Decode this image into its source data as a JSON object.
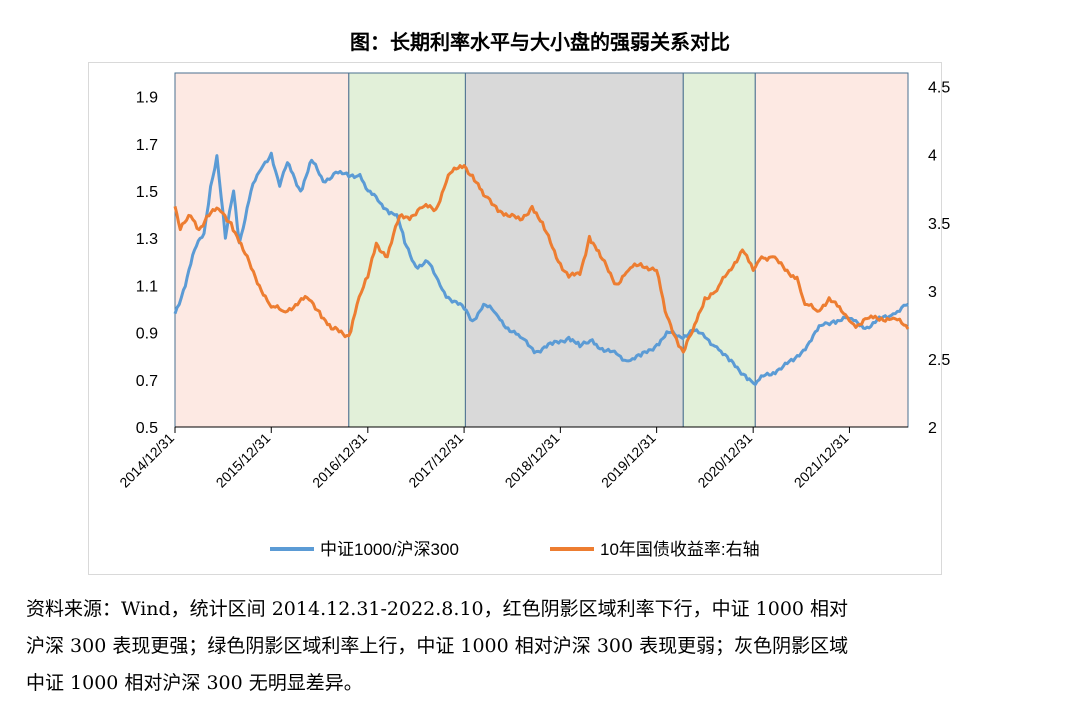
{
  "chart_title": "图：长期利率水平与大小盘的强弱关系对比",
  "source_lines": [
    "资料来源：Wind，统计区间 2014.12.31-2022.8.10，红色阴影区域利率下行，中证 1000 相对",
    "沪深 300 表现更强；绿色阴影区域利率上行，中证 1000 相对沪深 300 表现更弱；灰色阴影区域",
    "中证 1000 相对沪深 300 无明显差异。"
  ],
  "chart_data": {
    "type": "line",
    "title": "图：长期利率水平与大小盘的强弱关系对比",
    "x_range": [
      "2014-12-31",
      "2022-08-10"
    ],
    "x_ticks": [
      "2014/12/31",
      "2015/12/31",
      "2016/12/31",
      "2017/12/31",
      "2018/12/31",
      "2019/12/31",
      "2020/12/31",
      "2021/12/31"
    ],
    "y_left": {
      "min": 0.5,
      "max": 2.0,
      "ticks": [
        "0.5",
        "0.7",
        "0.9",
        "1.1",
        "1.3",
        "1.5",
        "1.7",
        "1.9"
      ]
    },
    "y_right": {
      "min": 2.0,
      "max": 4.6,
      "ticks": [
        "2",
        "2.5",
        "3",
        "3.5",
        "4",
        "4.5"
      ]
    },
    "grid": false,
    "legend_position": "bottom",
    "colors": {
      "ratio": "#5b9bd5",
      "yield": "#ed7d31",
      "shade_red": "#fde9e3",
      "shade_green": "#e2f0d9",
      "shade_gray": "#d9d9d9",
      "shade_border": "#4a6f8f"
    },
    "shaded_regions": [
      {
        "start": "2014-12-31",
        "end": "2016-10-20",
        "color": "red"
      },
      {
        "start": "2016-10-20",
        "end": "2018-01-05",
        "color": "green"
      },
      {
        "start": "2018-01-05",
        "end": "2020-04-10",
        "color": "gray"
      },
      {
        "start": "2020-04-10",
        "end": "2021-01-08",
        "color": "green"
      },
      {
        "start": "2021-01-08",
        "end": "2022-08-10",
        "color": "red"
      }
    ],
    "series": [
      {
        "name": "中证1000/沪深300",
        "axis": "left",
        "points": [
          [
            "2014-12-31",
            0.98
          ],
          [
            "2015-02-01",
            1.08
          ],
          [
            "2015-03-15",
            1.25
          ],
          [
            "2015-04-20",
            1.32
          ],
          [
            "2015-05-15",
            1.52
          ],
          [
            "2015-06-08",
            1.65
          ],
          [
            "2015-07-10",
            1.3
          ],
          [
            "2015-08-10",
            1.5
          ],
          [
            "2015-09-01",
            1.28
          ],
          [
            "2015-10-15",
            1.5
          ],
          [
            "2015-11-15",
            1.58
          ],
          [
            "2015-12-31",
            1.66
          ],
          [
            "2016-02-01",
            1.52
          ],
          [
            "2016-03-01",
            1.62
          ],
          [
            "2016-04-20",
            1.5
          ],
          [
            "2016-06-01",
            1.63
          ],
          [
            "2016-07-15",
            1.54
          ],
          [
            "2016-09-01",
            1.58
          ],
          [
            "2016-10-20",
            1.56
          ],
          [
            "2016-12-01",
            1.57
          ],
          [
            "2017-01-01",
            1.5
          ],
          [
            "2017-02-15",
            1.45
          ],
          [
            "2017-03-15",
            1.42
          ],
          [
            "2017-04-20",
            1.4
          ],
          [
            "2017-05-20",
            1.28
          ],
          [
            "2017-07-01",
            1.18
          ],
          [
            "2017-08-15",
            1.2
          ],
          [
            "2017-10-01",
            1.1
          ],
          [
            "2017-11-01",
            1.05
          ],
          [
            "2017-12-31",
            1.0
          ],
          [
            "2018-02-01",
            0.95
          ],
          [
            "2018-03-15",
            1.02
          ],
          [
            "2018-05-01",
            0.98
          ],
          [
            "2018-06-15",
            0.92
          ],
          [
            "2018-08-01",
            0.88
          ],
          [
            "2018-10-01",
            0.82
          ],
          [
            "2018-12-01",
            0.85
          ],
          [
            "2019-02-01",
            0.88
          ],
          [
            "2019-03-15",
            0.84
          ],
          [
            "2019-05-01",
            0.87
          ],
          [
            "2019-06-15",
            0.82
          ],
          [
            "2019-08-01",
            0.81
          ],
          [
            "2019-09-15",
            0.78
          ],
          [
            "2019-11-01",
            0.8
          ],
          [
            "2020-01-01",
            0.85
          ],
          [
            "2020-02-15",
            0.9
          ],
          [
            "2020-04-01",
            0.88
          ],
          [
            "2020-05-15",
            0.91
          ],
          [
            "2020-07-01",
            0.88
          ],
          [
            "2020-08-15",
            0.84
          ],
          [
            "2020-10-01",
            0.78
          ],
          [
            "2020-12-01",
            0.72
          ],
          [
            "2021-01-08",
            0.68
          ],
          [
            "2021-02-15",
            0.72
          ],
          [
            "2021-04-01",
            0.74
          ],
          [
            "2021-06-01",
            0.78
          ],
          [
            "2021-08-01",
            0.86
          ],
          [
            "2021-09-15",
            0.93
          ],
          [
            "2021-11-01",
            0.95
          ],
          [
            "2021-12-31",
            0.96
          ],
          [
            "2022-02-01",
            0.94
          ],
          [
            "2022-03-15",
            0.92
          ],
          [
            "2022-05-01",
            0.96
          ],
          [
            "2022-06-15",
            0.98
          ],
          [
            "2022-08-10",
            1.02
          ]
        ]
      },
      {
        "name": "10年国债收益率:右轴",
        "axis": "right",
        "points": [
          [
            "2014-12-31",
            3.62
          ],
          [
            "2015-01-20",
            3.45
          ],
          [
            "2015-03-01",
            3.55
          ],
          [
            "2015-04-01",
            3.45
          ],
          [
            "2015-05-01",
            3.55
          ],
          [
            "2015-06-15",
            3.6
          ],
          [
            "2015-08-01",
            3.5
          ],
          [
            "2015-09-15",
            3.3
          ],
          [
            "2015-11-01",
            3.1
          ],
          [
            "2015-12-31",
            2.88
          ],
          [
            "2016-02-15",
            2.85
          ],
          [
            "2016-04-01",
            2.9
          ],
          [
            "2016-05-15",
            2.95
          ],
          [
            "2016-07-01",
            2.85
          ],
          [
            "2016-08-15",
            2.72
          ],
          [
            "2016-10-20",
            2.67
          ],
          [
            "2016-11-20",
            2.9
          ],
          [
            "2016-12-31",
            3.1
          ],
          [
            "2017-02-01",
            3.35
          ],
          [
            "2017-03-15",
            3.25
          ],
          [
            "2017-05-01",
            3.55
          ],
          [
            "2017-06-15",
            3.55
          ],
          [
            "2017-08-01",
            3.62
          ],
          [
            "2017-09-15",
            3.6
          ],
          [
            "2017-11-01",
            3.85
          ],
          [
            "2017-12-31",
            3.92
          ],
          [
            "2018-02-01",
            3.85
          ],
          [
            "2018-03-15",
            3.7
          ],
          [
            "2018-05-01",
            3.62
          ],
          [
            "2018-06-15",
            3.55
          ],
          [
            "2018-08-01",
            3.52
          ],
          [
            "2018-09-15",
            3.62
          ],
          [
            "2018-11-01",
            3.45
          ],
          [
            "2018-12-31",
            3.2
          ],
          [
            "2019-02-01",
            3.1
          ],
          [
            "2019-03-15",
            3.12
          ],
          [
            "2019-04-20",
            3.4
          ],
          [
            "2019-06-01",
            3.25
          ],
          [
            "2019-08-01",
            3.05
          ],
          [
            "2019-09-15",
            3.15
          ],
          [
            "2019-11-01",
            3.2
          ],
          [
            "2019-12-31",
            3.15
          ],
          [
            "2020-02-01",
            2.85
          ],
          [
            "2020-03-15",
            2.65
          ],
          [
            "2020-04-10",
            2.55
          ],
          [
            "2020-05-15",
            2.7
          ],
          [
            "2020-07-01",
            2.95
          ],
          [
            "2020-08-15",
            3.0
          ],
          [
            "2020-10-01",
            3.15
          ],
          [
            "2020-11-20",
            3.3
          ],
          [
            "2020-12-31",
            3.15
          ],
          [
            "2021-02-01",
            3.25
          ],
          [
            "2021-03-15",
            3.25
          ],
          [
            "2021-05-01",
            3.15
          ],
          [
            "2021-06-15",
            3.1
          ],
          [
            "2021-07-15",
            2.9
          ],
          [
            "2021-09-01",
            2.85
          ],
          [
            "2021-10-15",
            2.95
          ],
          [
            "2021-12-01",
            2.85
          ],
          [
            "2021-12-31",
            2.78
          ],
          [
            "2022-02-01",
            2.75
          ],
          [
            "2022-03-15",
            2.8
          ],
          [
            "2022-05-01",
            2.8
          ],
          [
            "2022-06-15",
            2.8
          ],
          [
            "2022-08-10",
            2.72
          ]
        ]
      }
    ]
  }
}
